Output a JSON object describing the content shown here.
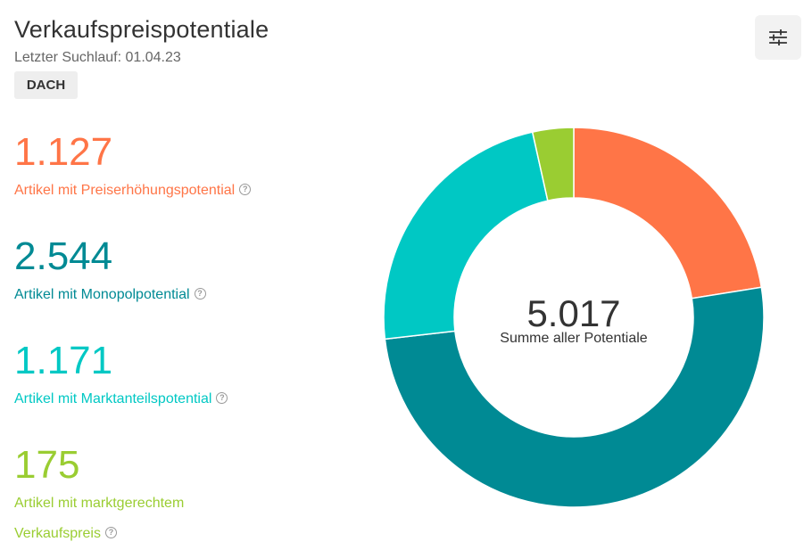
{
  "header": {
    "title": "Verkaufspreispotentiale",
    "subtitle": "Letzter Suchlauf: 01.04.23",
    "region_badge": "DACH",
    "filter_icon": "sliders-icon"
  },
  "stats": [
    {
      "value": "1.127",
      "label": "Artikel mit Preiserhöhungspotential",
      "color": "#ff7547"
    },
    {
      "value": "2.544",
      "label": "Artikel mit Monopolpotential",
      "color": "#008a94"
    },
    {
      "value": "1.171",
      "label": "Artikel mit Marktanteilspotential",
      "color": "#00c8c4"
    },
    {
      "value": "175",
      "label_line1": "Artikel mit marktgerechtem",
      "label_line2": "Verkaufspreis",
      "color": "#9acd32"
    }
  ],
  "chart_data": {
    "type": "donut",
    "total_label": "5.017",
    "center_caption": "Summe aller Potentiale",
    "series": [
      {
        "name": "Artikel mit Preiserhöhungspotential",
        "value": 1127,
        "color": "#ff7547"
      },
      {
        "name": "Artikel mit Monopolpotential",
        "value": 2544,
        "color": "#008a94"
      },
      {
        "name": "Artikel mit Marktanteilspotential",
        "value": 1171,
        "color": "#00c8c4"
      },
      {
        "name": "Artikel mit marktgerechtem Verkaufspreis",
        "value": 175,
        "color": "#9acd32"
      }
    ]
  }
}
